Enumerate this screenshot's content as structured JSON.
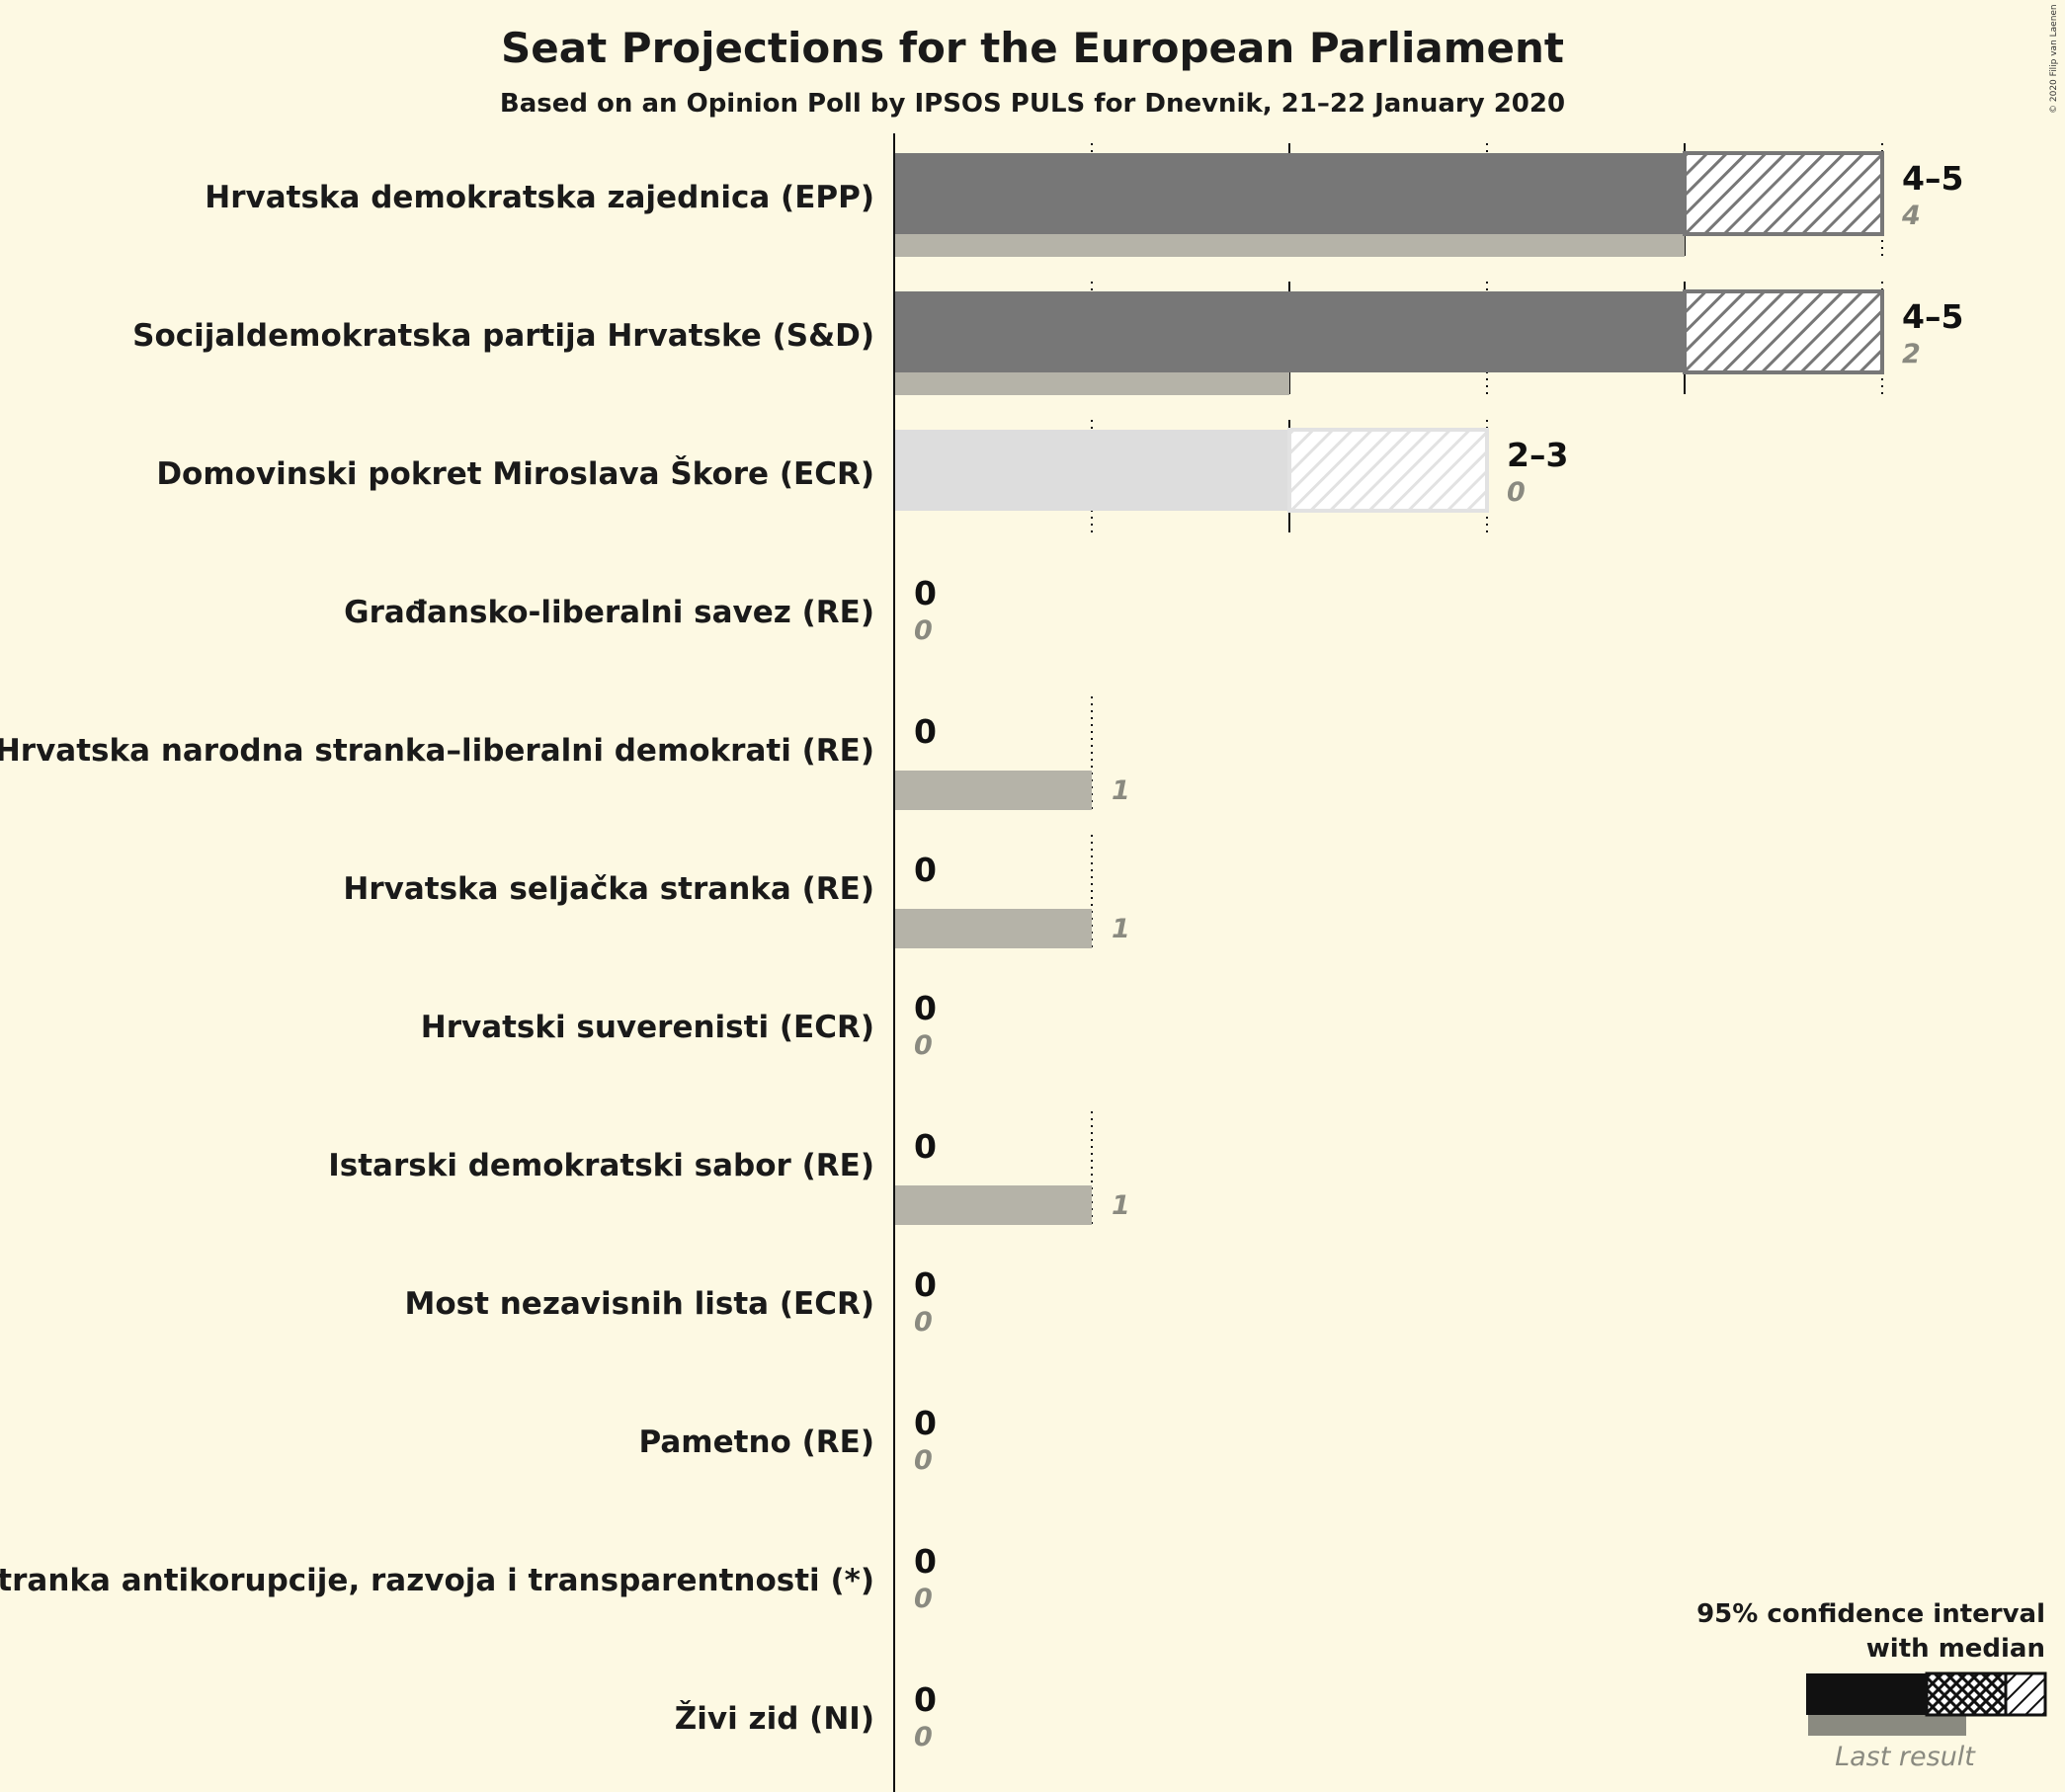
{
  "chart_data": {
    "type": "bar",
    "title": "Seat Projections for the European Parliament",
    "subtitle": "Based on an Opinion Poll by IPSOS PULS for Dnevnik, 21–22 January 2020",
    "copyright": "© 2020 Filip van Laenen",
    "xlim": [
      0,
      5
    ],
    "gridlines": [
      1,
      2,
      3,
      4,
      5
    ],
    "parties": [
      {
        "name": "Hrvatska demokratska zajednica (EPP)",
        "low": 4,
        "high": 5,
        "range_label": "4–5",
        "last": 4,
        "last_label": "4",
        "highlight": true
      },
      {
        "name": "Socijaldemokratska partija Hrvatske (S&D)",
        "low": 4,
        "high": 5,
        "range_label": "4–5",
        "last": 2,
        "last_label": "2",
        "highlight": true
      },
      {
        "name": "Domovinski pokret Miroslava Škore (ECR)",
        "low": 2,
        "high": 3,
        "range_label": "2–3",
        "last": 0,
        "last_label": "0",
        "highlight": false
      },
      {
        "name": "Građansko-liberalni savez (RE)",
        "low": 0,
        "high": 0,
        "range_label": "0",
        "last": 0,
        "last_label": "0",
        "highlight": false
      },
      {
        "name": "Hrvatska narodna stranka–liberalni demokrati (RE)",
        "low": 0,
        "high": 0,
        "range_label": "0",
        "last": 1,
        "last_label": "1",
        "highlight": false
      },
      {
        "name": "Hrvatska seljačka stranka (RE)",
        "low": 0,
        "high": 0,
        "range_label": "0",
        "last": 1,
        "last_label": "1",
        "highlight": false
      },
      {
        "name": "Hrvatski suverenisti (ECR)",
        "low": 0,
        "high": 0,
        "range_label": "0",
        "last": 0,
        "last_label": "0",
        "highlight": false
      },
      {
        "name": "Istarski demokratski sabor (RE)",
        "low": 0,
        "high": 0,
        "range_label": "0",
        "last": 1,
        "last_label": "1",
        "highlight": false
      },
      {
        "name": "Most nezavisnih lista (ECR)",
        "low": 0,
        "high": 0,
        "range_label": "0",
        "last": 0,
        "last_label": "0",
        "highlight": false
      },
      {
        "name": "Pametno (RE)",
        "low": 0,
        "high": 0,
        "range_label": "0",
        "last": 0,
        "last_label": "0",
        "highlight": false
      },
      {
        "name": "Stranka antikorupcije, razvoja i transparentnosti (*)",
        "low": 0,
        "high": 0,
        "range_label": "0",
        "last": 0,
        "last_label": "0",
        "highlight": false
      },
      {
        "name": "Živi zid (NI)",
        "low": 0,
        "high": 0,
        "range_label": "0",
        "last": 0,
        "last_label": "0",
        "highlight": false
      }
    ],
    "legend": {
      "line1": "95% confidence interval",
      "line2": "with median",
      "last_result": "Last result"
    }
  },
  "colors": {
    "background": "#fdf9e3",
    "bar_main": "#777777",
    "bar_light": "#dddddd",
    "last_result": "#b5b3a8",
    "axis": "#111111"
  }
}
